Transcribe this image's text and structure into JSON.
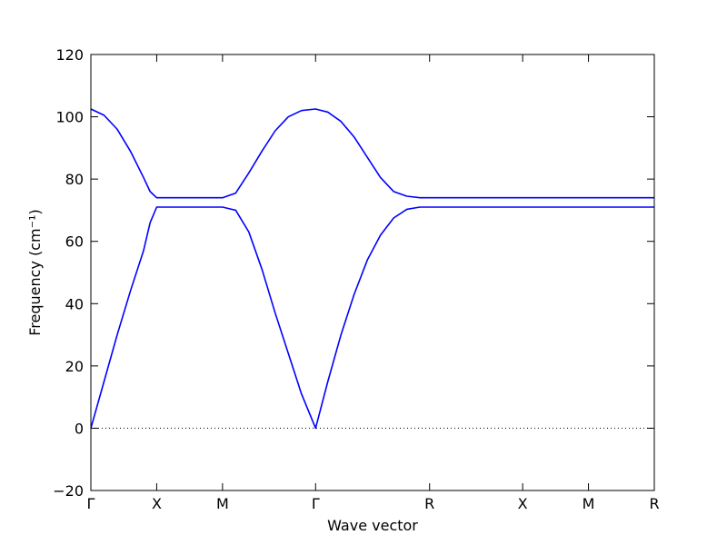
{
  "chart_data": {
    "type": "line",
    "xlabel": "Wave vector",
    "ylabel": "Frequency (cm⁻¹)",
    "x": [
      0,
      0.1,
      0.2,
      0.3,
      0.4,
      0.45,
      0.5,
      0.75,
      1.0,
      1.1,
      1.2,
      1.3,
      1.4,
      1.5,
      1.6,
      1.707,
      1.8,
      1.9,
      2.0,
      2.1,
      2.2,
      2.3,
      2.4,
      2.5,
      2.573,
      3.28,
      3.78,
      4.28
    ],
    "series": [
      {
        "color": "#0000ff",
        "values": [
          0,
          15,
          30,
          44,
          57,
          66,
          71,
          71,
          71,
          70,
          63,
          51,
          37,
          24,
          11,
          0,
          15,
          30,
          43,
          54,
          62,
          67.5,
          70.3,
          71,
          71,
          71,
          71,
          71
        ]
      },
      {
        "color": "#0000ff",
        "values": [
          102.5,
          100.5,
          96,
          89,
          80.5,
          76,
          74,
          74,
          74,
          75.5,
          82,
          89,
          95.5,
          100,
          102,
          102.5,
          101.5,
          98.5,
          93.5,
          87,
          80.5,
          76,
          74.5,
          74,
          74,
          74,
          74,
          74
        ]
      }
    ],
    "xlim": [
      0,
      4.28
    ],
    "xticks": [
      {
        "value": 0,
        "label": "Γ"
      },
      {
        "value": 0.5,
        "label": "X"
      },
      {
        "value": 1.0,
        "label": "M"
      },
      {
        "value": 1.707,
        "label": "Γ"
      },
      {
        "value": 2.573,
        "label": "R"
      },
      {
        "value": 3.28,
        "label": "X"
      },
      {
        "value": 3.78,
        "label": "M"
      },
      {
        "value": 4.28,
        "label": "R"
      }
    ],
    "ylim": [
      -20,
      120
    ],
    "yticks": [
      {
        "value": -20,
        "label": "−20"
      },
      0,
      20,
      40,
      60,
      80,
      100,
      120
    ]
  }
}
